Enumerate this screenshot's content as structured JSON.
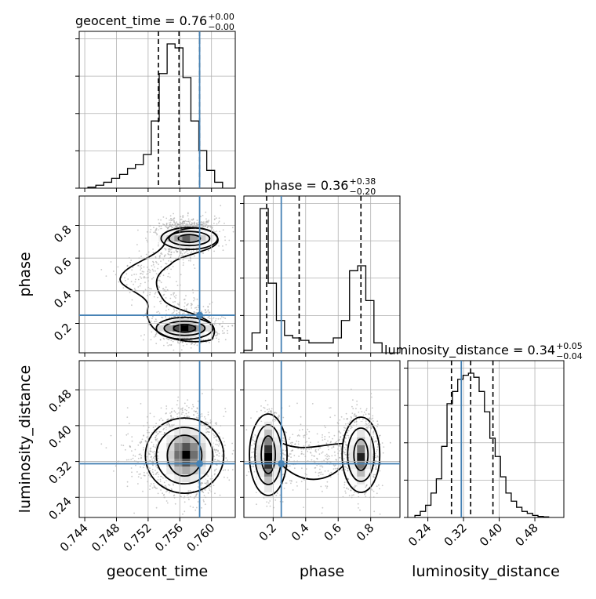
{
  "chart_data": {
    "type": "corner",
    "parameters": [
      "geocent_time",
      "phase",
      "luminosity_distance"
    ],
    "truths": {
      "geocent_time": 0.7585,
      "phase": 0.25,
      "luminosity_distance": 0.315
    },
    "titles": [
      {
        "param": "geocent_time",
        "text": "geocent_time = 0.76",
        "sup": "+0.00",
        "sub": "−0.00"
      },
      {
        "param": "phase",
        "text": "phase = 0.36",
        "sup": "+0.38",
        "sub": "−0.20"
      },
      {
        "param": "luminosity_distance",
        "text": "luminosity_distance = 0.34",
        "sup": "+0.05",
        "sub": "−0.04"
      }
    ],
    "axis_labels": {
      "x": [
        "geocent_time",
        "phase",
        "luminosity_distance"
      ],
      "y": [
        "phase",
        "luminosity_distance"
      ]
    },
    "ticks": {
      "geocent_time": [
        "0.744",
        "0.748",
        "0.752",
        "0.756",
        "0.760"
      ],
      "phase": [
        "0.2",
        "0.4",
        "0.6",
        "0.8"
      ],
      "luminosity_distance": [
        "0.24",
        "0.32",
        "0.40",
        "0.48"
      ]
    },
    "ranges": {
      "geocent_time": [
        0.7433,
        0.763
      ],
      "phase": [
        0.02,
        0.98
      ],
      "luminosity_distance": [
        0.195,
        0.545
      ]
    },
    "histograms": {
      "geocent_time": {
        "edges": [
          0.7444,
          0.7454,
          0.7464,
          0.7474,
          0.7484,
          0.7494,
          0.7504,
          0.7514,
          0.7524,
          0.7534,
          0.7544,
          0.7554,
          0.7564,
          0.7574,
          0.7584,
          0.7594,
          0.7604,
          0.7614
        ],
        "counts": [
          0.5,
          1.5,
          3,
          5,
          7,
          10,
          12,
          17,
          34,
          58,
          73,
          71,
          56,
          34,
          19,
          9,
          3
        ],
        "quantiles": [
          0.7533,
          0.7559,
          0.7585
        ]
      },
      "phase": {
        "edges": [
          0.02,
          0.07,
          0.12,
          0.17,
          0.22,
          0.27,
          0.32,
          0.37,
          0.42,
          0.47,
          0.52,
          0.57,
          0.62,
          0.67,
          0.72,
          0.77,
          0.82,
          0.87
        ],
        "counts": [
          1,
          8,
          58,
          28,
          13,
          7,
          6,
          5,
          4,
          4,
          4,
          6,
          13,
          33,
          35,
          21,
          4
        ],
        "quantiles": [
          0.16,
          0.36,
          0.74
        ]
      },
      "luminosity_distance": {
        "edges": [
          0.211,
          0.223,
          0.235,
          0.247,
          0.259,
          0.271,
          0.283,
          0.295,
          0.307,
          0.319,
          0.331,
          0.343,
          0.355,
          0.367,
          0.379,
          0.391,
          0.403,
          0.415,
          0.427,
          0.439,
          0.451,
          0.463,
          0.475,
          0.487,
          0.499,
          0.511
        ],
        "counts": [
          1,
          3,
          6,
          12,
          19,
          35,
          56,
          62,
          68,
          70,
          71,
          69,
          62,
          52,
          39,
          30,
          20,
          12,
          8,
          5,
          3,
          2,
          1,
          0.5,
          0.3
        ],
        "quantiles": [
          0.293,
          0.336,
          0.386
        ]
      }
    },
    "posterior_2d": {
      "phase_modes": [
        {
          "mean": 0.17,
          "sd": 0.04,
          "weight": 0.55
        },
        {
          "mean": 0.74,
          "sd": 0.05,
          "weight": 0.45
        }
      ],
      "geocent_time_mode": {
        "mean": 0.757,
        "sd": 0.0019
      },
      "phase_bridge_center": 0.49,
      "luminosity_distance_mode": {
        "mean": 0.337,
        "sd": 0.042
      }
    }
  }
}
